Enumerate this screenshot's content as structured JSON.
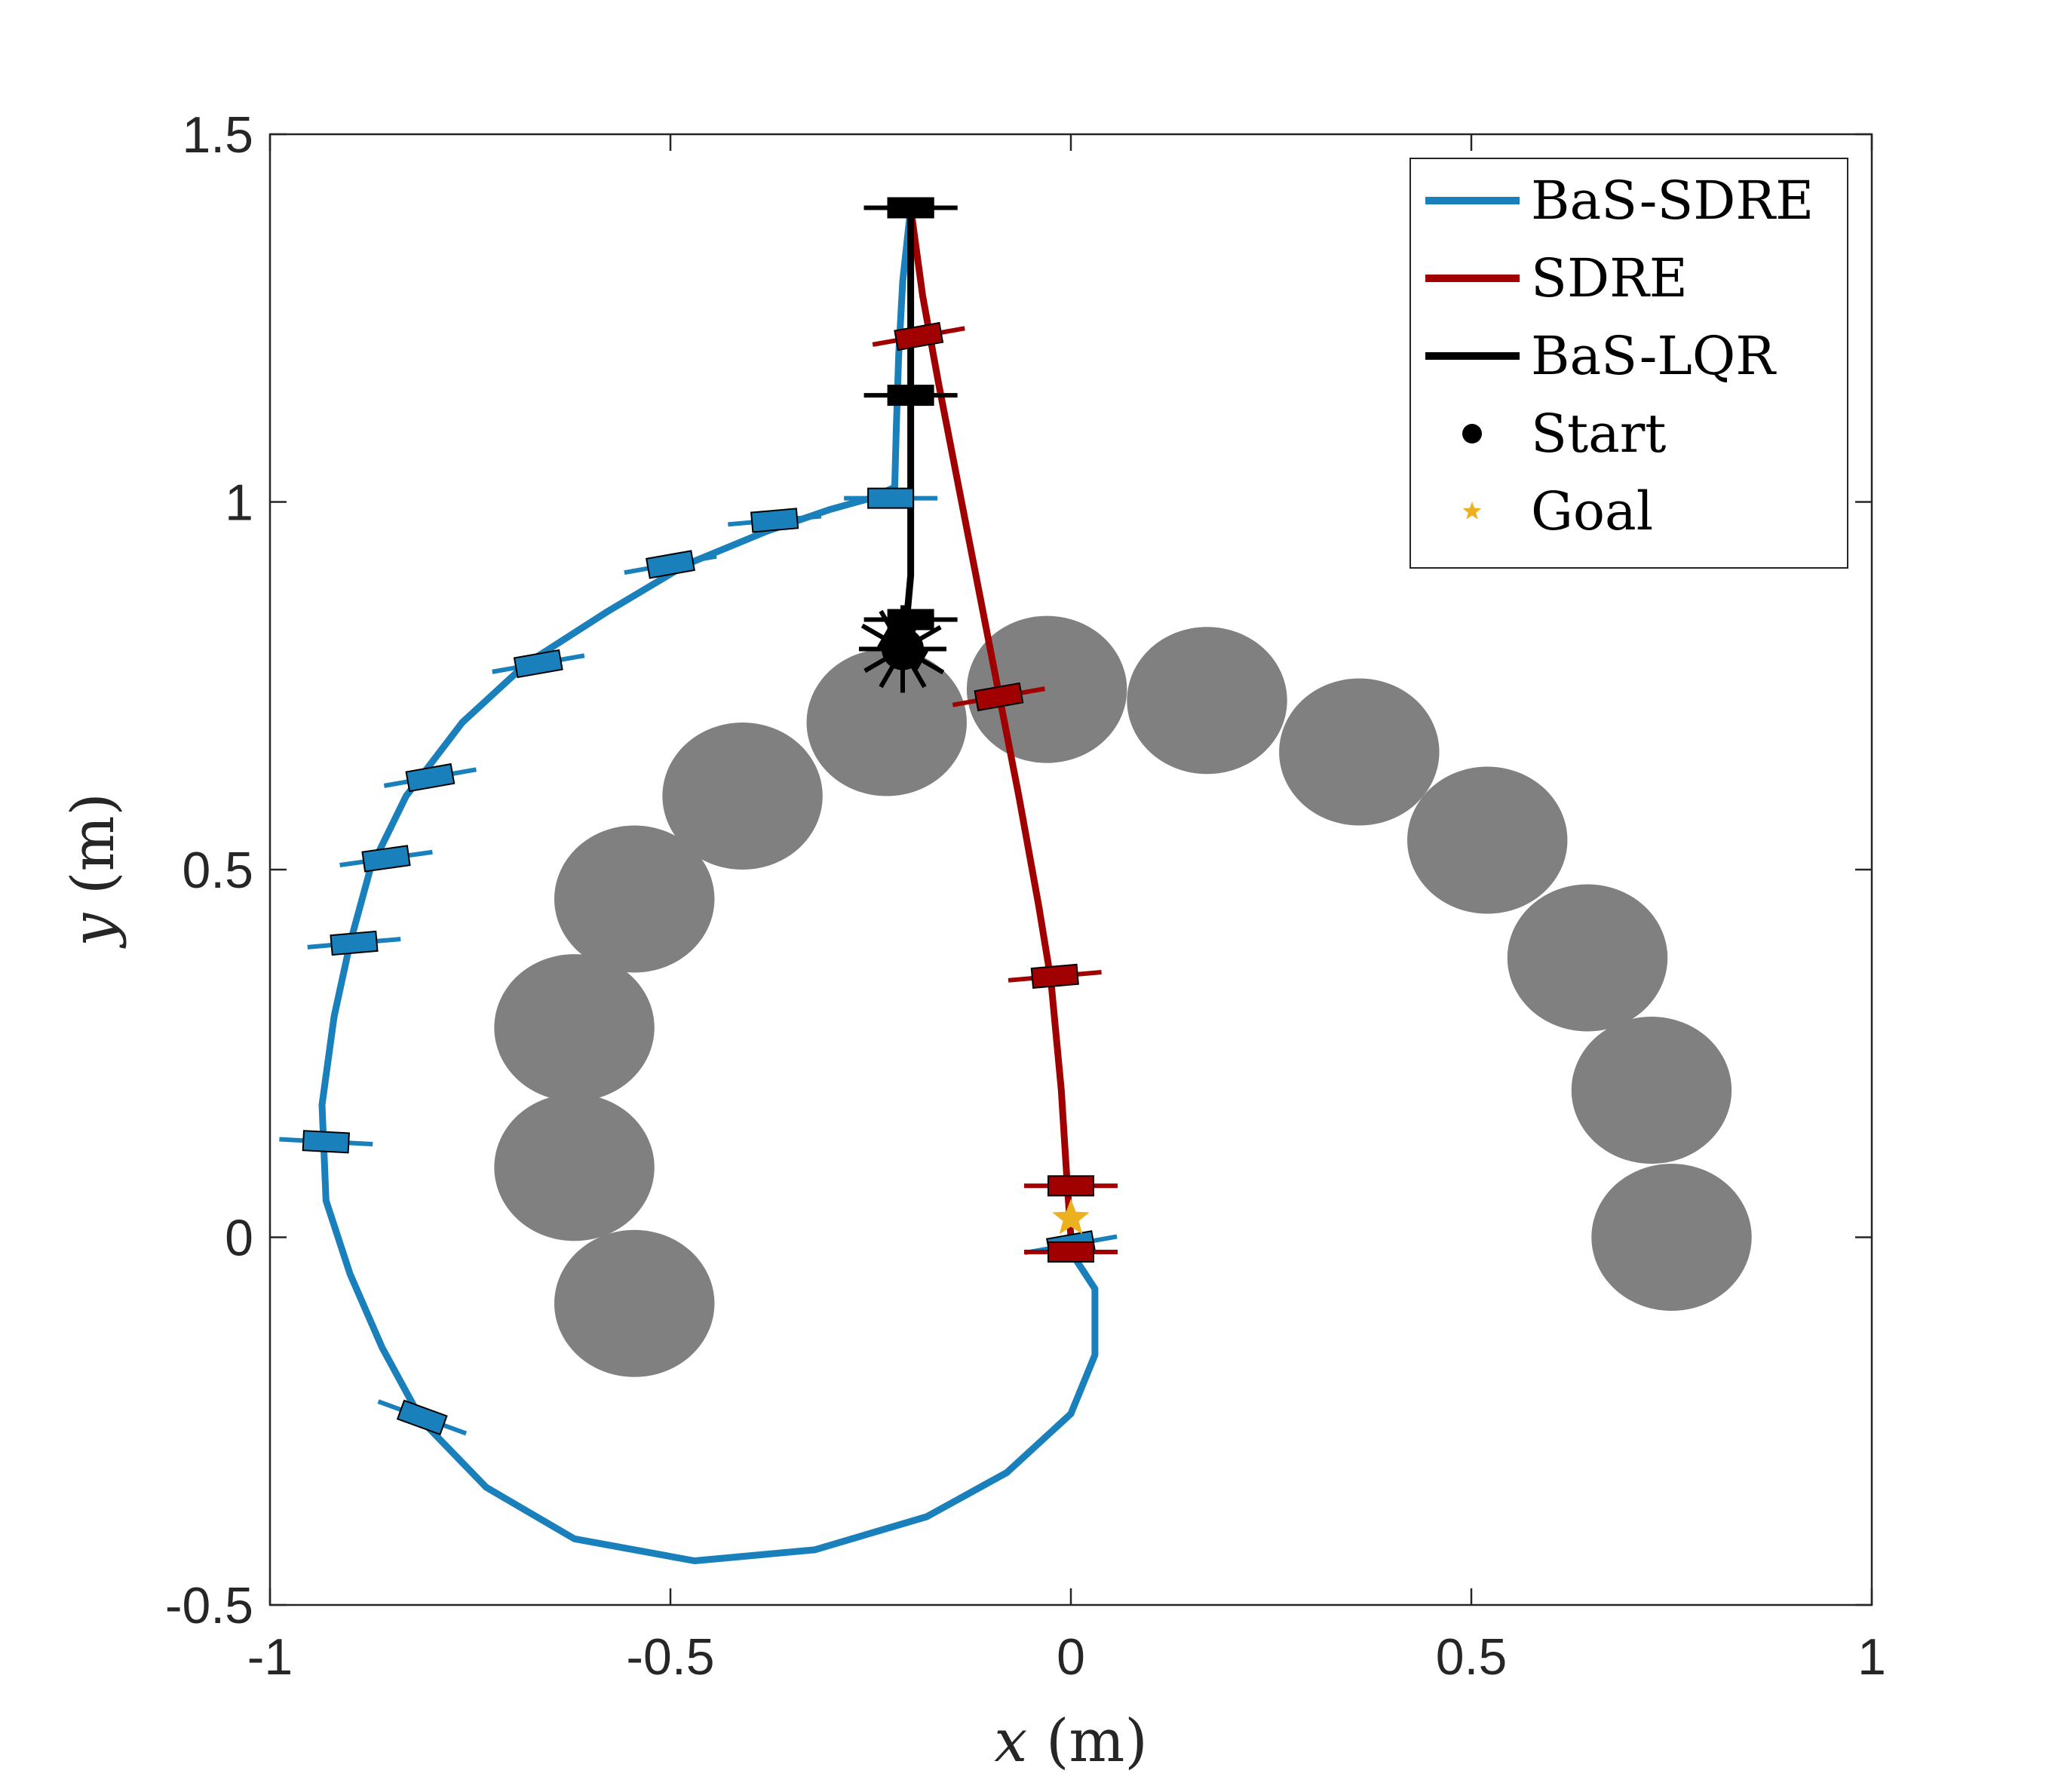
{
  "chart_data": {
    "type": "scatter",
    "xlabel_var": "x",
    "xlabel_unit": "(m)",
    "ylabel_var": "y",
    "ylabel_unit": "(m)",
    "xlim": [
      -1,
      1
    ],
    "ylim": [
      -0.5,
      1.5
    ],
    "xticks": [
      "-1",
      "-0.5",
      "0",
      "0.5",
      "1"
    ],
    "yticks": [
      "-0.5",
      "0",
      "0.5",
      "1",
      "1.5"
    ],
    "xtick_values": [
      -1,
      -0.5,
      0,
      0.5,
      1
    ],
    "ytick_values": [
      -0.5,
      0,
      0.5,
      1,
      1.5
    ],
    "grid": false,
    "legend_position": "top-right",
    "colors": {
      "bas_sdre": "#1a80bb",
      "sdre": "#a00000",
      "bas_lqr": "#000000",
      "start": "#000000",
      "goal": "#edb120",
      "obstacle": "#808080"
    },
    "legend": [
      {
        "label": "BaS-SDRE",
        "kind": "line",
        "color": "#1a80bb"
      },
      {
        "label": "SDRE",
        "kind": "line",
        "color": "#a00000"
      },
      {
        "label": "BaS-LQR",
        "kind": "line",
        "color": "#000000"
      },
      {
        "label": "Start",
        "kind": "dot",
        "color": "#000000"
      },
      {
        "label": "Goal",
        "kind": "star",
        "color": "#edb120"
      }
    ],
    "obstacles": [
      {
        "x": -0.62,
        "y": 0.095
      },
      {
        "x": -0.62,
        "y": 0.285
      },
      {
        "x": -0.545,
        "y": -0.09
      },
      {
        "x": -0.545,
        "y": 0.46
      },
      {
        "x": -0.41,
        "y": 0.6
      },
      {
        "x": -0.23,
        "y": 0.7
      },
      {
        "x": -0.03,
        "y": 0.745
      },
      {
        "x": 0.17,
        "y": 0.73
      },
      {
        "x": 0.36,
        "y": 0.66
      },
      {
        "x": 0.52,
        "y": 0.54
      },
      {
        "x": 0.645,
        "y": 0.38
      },
      {
        "x": 0.725,
        "y": 0.2
      },
      {
        "x": 0.75,
        "y": 0.0
      }
    ],
    "obstacle_radius": [
      0.1,
      0.1
    ],
    "series": [
      {
        "name": "BaS-SDRE",
        "points": [
          [
            -0.2,
            1.4
          ],
          [
            -0.21,
            1.3
          ],
          [
            -0.215,
            1.2
          ],
          [
            -0.218,
            1.1
          ],
          [
            -0.22,
            1.02
          ],
          [
            -0.25,
            1.005
          ],
          [
            -0.3,
            0.99
          ],
          [
            -0.38,
            0.96
          ],
          [
            -0.48,
            0.915
          ],
          [
            -0.58,
            0.85
          ],
          [
            -0.68,
            0.78
          ],
          [
            -0.76,
            0.7
          ],
          [
            -0.83,
            0.6
          ],
          [
            -0.875,
            0.5
          ],
          [
            -0.9,
            0.4
          ],
          [
            -0.92,
            0.3
          ],
          [
            -0.935,
            0.18
          ],
          [
            -0.93,
            0.05
          ],
          [
            -0.9,
            -0.05
          ],
          [
            -0.86,
            -0.15
          ],
          [
            -0.81,
            -0.25
          ],
          [
            -0.73,
            -0.34
          ],
          [
            -0.62,
            -0.41
          ],
          [
            -0.47,
            -0.44
          ],
          [
            -0.32,
            -0.425
          ],
          [
            -0.18,
            -0.38
          ],
          [
            -0.08,
            -0.32
          ],
          [
            0.0,
            -0.24
          ],
          [
            0.03,
            -0.16
          ],
          [
            0.03,
            -0.07
          ],
          [
            0.0,
            -0.02
          ]
        ],
        "markers": [
          [
            -0.2,
            1.4,
            0
          ],
          [
            -0.225,
            1.005,
            0
          ],
          [
            -0.37,
            0.975,
            -5
          ],
          [
            -0.5,
            0.915,
            -10
          ],
          [
            -0.665,
            0.78,
            -10
          ],
          [
            -0.8,
            0.625,
            -10
          ],
          [
            -0.855,
            0.515,
            -8
          ],
          [
            -0.895,
            0.4,
            -5
          ],
          [
            -0.93,
            0.13,
            3
          ],
          [
            -0.81,
            -0.245,
            20
          ],
          [
            0.0,
            -0.01,
            -10
          ]
        ]
      },
      {
        "name": "SDRE",
        "points": [
          [
            -0.2,
            1.4
          ],
          [
            -0.185,
            1.28
          ],
          [
            -0.165,
            1.16
          ],
          [
            -0.14,
            1.02
          ],
          [
            -0.115,
            0.88
          ],
          [
            -0.09,
            0.74
          ],
          [
            -0.065,
            0.6
          ],
          [
            -0.04,
            0.45
          ],
          [
            -0.025,
            0.35
          ],
          [
            -0.012,
            0.2
          ],
          [
            -0.005,
            0.08
          ],
          [
            0.0,
            0.0
          ]
        ],
        "markers": [
          [
            -0.2,
            1.4,
            0
          ],
          [
            -0.19,
            1.225,
            -10
          ],
          [
            -0.09,
            0.735,
            -10
          ],
          [
            -0.02,
            0.355,
            -5
          ],
          [
            0.0,
            0.07,
            0
          ],
          [
            0.0,
            -0.02,
            0
          ]
        ]
      },
      {
        "name": "BaS-LQR",
        "points": [
          [
            -0.2,
            1.4
          ],
          [
            -0.2,
            1.3
          ],
          [
            -0.2,
            1.15
          ],
          [
            -0.2,
            1.0
          ],
          [
            -0.2,
            0.9
          ],
          [
            -0.205,
            0.84
          ],
          [
            -0.21,
            0.8
          ]
        ],
        "markers": [
          [
            -0.2,
            1.4,
            0
          ],
          [
            -0.2,
            1.145,
            0
          ],
          [
            -0.2,
            0.84,
            0
          ],
          [
            -0.21,
            0.8,
            30
          ]
        ]
      }
    ],
    "start": {
      "x": -0.21,
      "y": 0.8
    },
    "goal": {
      "x": 0.0,
      "y": 0.0
    }
  }
}
